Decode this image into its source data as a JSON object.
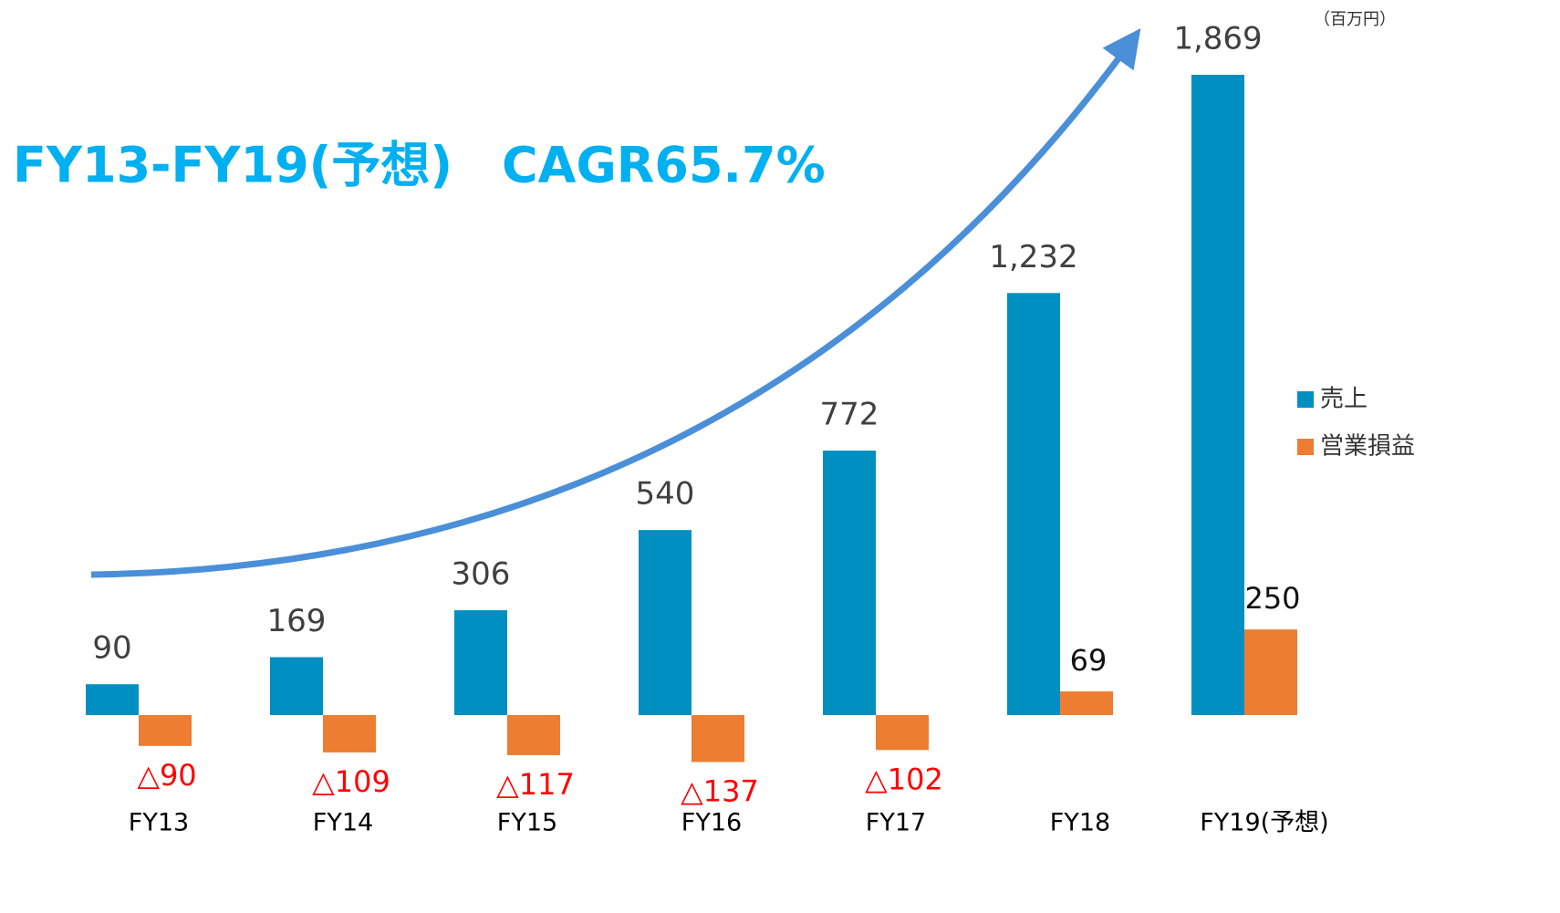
{
  "chart_data": {
    "type": "bar",
    "title": "FY13-FY19(予想)　CAGR65.7%",
    "unit": "（百万円）",
    "categories": [
      "FY13",
      "FY14",
      "FY15",
      "FY16",
      "FY17",
      "FY18",
      "FY19(予想)"
    ],
    "series": [
      {
        "name": "売上",
        "color": "#008fc1",
        "values": [
          90,
          169,
          306,
          540,
          772,
          1232,
          1869
        ],
        "value_labels": [
          "90",
          "169",
          "306",
          "540",
          "772",
          "1,232",
          "1,869"
        ]
      },
      {
        "name": "営業損益",
        "color": "#ed7d31",
        "values": [
          -90,
          -109,
          -117,
          -137,
          -102,
          69,
          250
        ],
        "value_labels": [
          "△90",
          "△109",
          "△117",
          "△137",
          "△102",
          "69",
          "250"
        ]
      }
    ],
    "legend": "right"
  }
}
